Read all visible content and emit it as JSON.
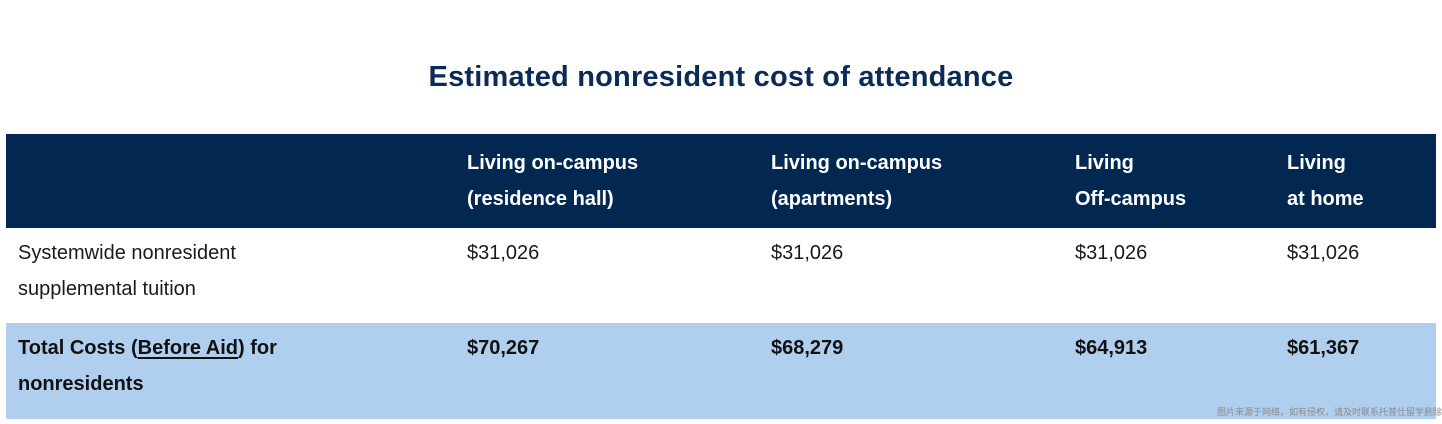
{
  "title": "Estimated nonresident cost of attendance",
  "table": {
    "headers": [
      "",
      [
        "Living on-campus",
        "(residence hall)"
      ],
      [
        "Living on-campus",
        "(apartments)"
      ],
      [
        "Living",
        "Off-campus"
      ],
      [
        "Living",
        "at home"
      ]
    ],
    "rows": {
      "tuition": {
        "label": [
          "Systemwide nonresident",
          "supplemental tuition"
        ],
        "values": [
          "$31,026",
          "$31,026",
          "$31,026",
          "$31,026"
        ]
      },
      "total": {
        "label_prefix": "Total Costs (",
        "label_link": "Before Aid",
        "label_suffix": ") for",
        "label_line2": "nonresidents",
        "values": [
          "$70,267",
          "$68,279",
          "$64,913",
          "$61,367"
        ]
      }
    },
    "colors": {
      "header_bg": "#022851",
      "total_bg": "#b0cfee",
      "title": "#0b2a55"
    }
  },
  "watermark": "图片来源于网络，如有侵权，请及时联系托普仕留学删除"
}
